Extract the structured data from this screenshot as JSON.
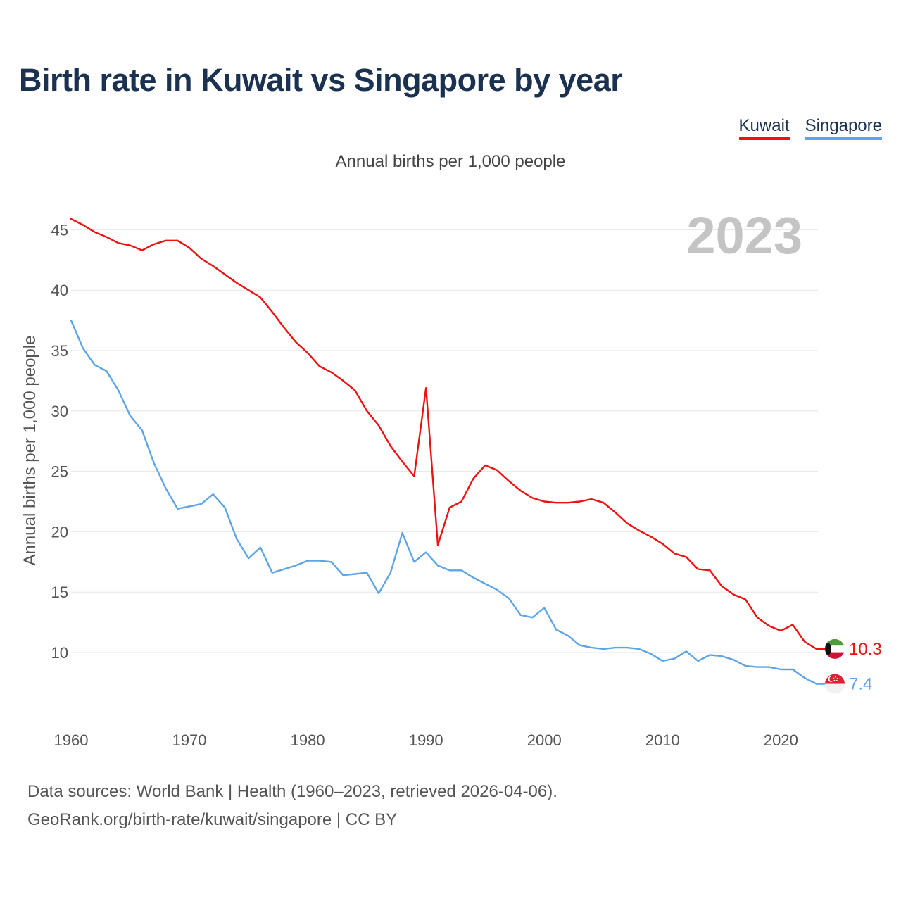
{
  "title": "Birth rate in Kuwait vs Singapore by year",
  "subtitle": "Annual births per 1,000 people",
  "year_watermark": "2023",
  "source_line1": "Data sources: World Bank | Health (1960–2023, retrieved 2026-04-06).",
  "source_line2": "GeoRank.org/birth-rate/kuwait/singapore | CC BY",
  "colors": {
    "kuwait": "#ee1111",
    "singapore": "#5ea5e6",
    "title": "#1a3150"
  },
  "chart_data": {
    "type": "line",
    "title": "Birth rate in Kuwait vs Singapore by year",
    "xlabel": "",
    "ylabel": "Annual births per 1,000 people",
    "xlim": [
      1960,
      2023
    ],
    "ylim": [
      5,
      47
    ],
    "x_ticks": [
      1960,
      1970,
      1980,
      1990,
      2000,
      2010,
      2020
    ],
    "y_ticks": [
      10,
      15,
      20,
      25,
      30,
      35,
      40,
      45
    ],
    "grid": true,
    "legend": "top-right",
    "x": [
      1960,
      1961,
      1962,
      1963,
      1964,
      1965,
      1966,
      1967,
      1968,
      1969,
      1970,
      1971,
      1972,
      1973,
      1974,
      1975,
      1976,
      1977,
      1978,
      1979,
      1980,
      1981,
      1982,
      1983,
      1984,
      1985,
      1986,
      1987,
      1988,
      1989,
      1990,
      1991,
      1992,
      1993,
      1994,
      1995,
      1996,
      1997,
      1998,
      1999,
      2000,
      2001,
      2002,
      2003,
      2004,
      2005,
      2006,
      2007,
      2008,
      2009,
      2010,
      2011,
      2012,
      2013,
      2014,
      2015,
      2016,
      2017,
      2018,
      2019,
      2020,
      2021,
      2022,
      2023
    ],
    "series": [
      {
        "name": "Kuwait",
        "color": "#ee1111",
        "end_label": "10.3",
        "values": [
          45.9,
          45.4,
          44.8,
          44.4,
          43.9,
          43.7,
          43.3,
          43.8,
          44.1,
          44.1,
          43.5,
          42.6,
          42.0,
          41.3,
          40.6,
          40.0,
          39.4,
          38.2,
          36.9,
          35.7,
          34.8,
          33.7,
          33.2,
          32.5,
          31.7,
          30.0,
          28.8,
          27.1,
          25.8,
          24.6,
          31.9,
          18.9,
          22.0,
          22.5,
          24.4,
          25.5,
          25.1,
          24.2,
          23.4,
          22.8,
          22.5,
          22.4,
          22.4,
          22.5,
          22.7,
          22.4,
          21.6,
          20.7,
          20.1,
          19.6,
          19.0,
          18.2,
          17.9,
          16.9,
          16.8,
          15.5,
          14.8,
          14.4,
          12.9,
          12.2,
          11.8,
          12.3,
          10.9,
          10.3
        ]
      },
      {
        "name": "Singapore",
        "color": "#5ea5e6",
        "end_label": "7.4",
        "values": [
          37.5,
          35.2,
          33.8,
          33.3,
          31.7,
          29.6,
          28.4,
          25.7,
          23.6,
          21.9,
          22.1,
          22.3,
          23.1,
          22.0,
          19.4,
          17.8,
          18.7,
          16.6,
          16.9,
          17.2,
          17.6,
          17.6,
          17.5,
          16.4,
          16.5,
          16.6,
          14.9,
          16.6,
          19.9,
          17.5,
          18.3,
          17.2,
          16.8,
          16.8,
          16.2,
          15.7,
          15.2,
          14.5,
          13.1,
          12.9,
          13.7,
          11.9,
          11.4,
          10.6,
          10.4,
          10.3,
          10.4,
          10.4,
          10.3,
          9.9,
          9.3,
          9.5,
          10.1,
          9.3,
          9.8,
          9.7,
          9.4,
          8.9,
          8.8,
          8.8,
          8.6,
          8.6,
          7.9,
          7.4
        ]
      }
    ]
  }
}
